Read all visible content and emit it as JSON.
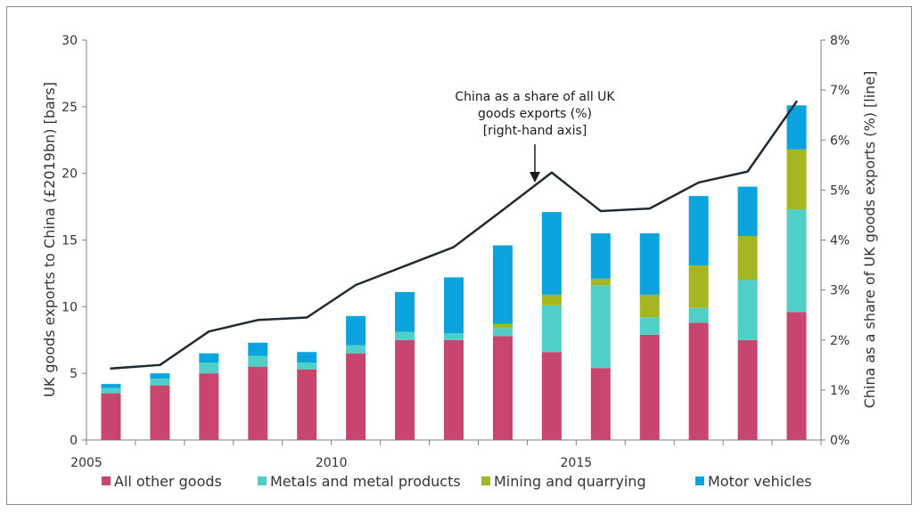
{
  "chart_data": {
    "type": "bar",
    "stacked": true,
    "title": "",
    "ylabel": "UK goods exports to China (£2019bn) [bars]",
    "y2label": "China as a share of UK goods exports (%) [line]",
    "ylim": [
      0,
      30
    ],
    "y2lim": [
      0,
      8
    ],
    "yticks": [
      "0",
      "5",
      "10",
      "15",
      "20",
      "25",
      "30"
    ],
    "y2ticks": [
      "0%",
      "1%",
      "2%",
      "3%",
      "4%",
      "5%",
      "6%",
      "7%",
      "8%"
    ],
    "xtick_labels": [
      "2005",
      "2010",
      "2015"
    ],
    "categories": [
      "2005",
      "2006",
      "2007",
      "2008",
      "2009",
      "2010",
      "2011",
      "2012",
      "2013",
      "2014",
      "2015",
      "2016",
      "2017",
      "2018",
      "2019"
    ],
    "series": [
      {
        "name": "All other goods",
        "color": "#c8456d",
        "values": [
          3.5,
          4.1,
          5.0,
          5.5,
          5.3,
          6.5,
          7.5,
          7.5,
          7.8,
          6.6,
          5.4,
          7.9,
          8.8,
          7.5,
          9.6
        ]
      },
      {
        "name": "Metals and metal products",
        "color": "#4fcfc7",
        "values": [
          0.4,
          0.5,
          0.8,
          0.8,
          0.5,
          0.6,
          0.6,
          0.5,
          0.6,
          3.5,
          6.2,
          1.3,
          1.1,
          4.5,
          7.7
        ]
      },
      {
        "name": "Mining and quarrying",
        "color": "#a6b522",
        "values": [
          0.0,
          0.0,
          0.0,
          0.0,
          0.0,
          0.0,
          0.0,
          0.0,
          0.3,
          0.8,
          0.5,
          1.7,
          3.2,
          3.3,
          4.5
        ]
      },
      {
        "name": "Motor vehicles",
        "color": "#0aa3de",
        "values": [
          0.3,
          0.4,
          0.7,
          1.0,
          0.8,
          2.2,
          3.0,
          4.2,
          5.9,
          6.2,
          3.4,
          4.6,
          5.2,
          3.7,
          3.3
        ]
      }
    ],
    "line": {
      "name": "China as a share of all UK goods exports (%)",
      "color": "#1f2b35",
      "values": [
        1.43,
        1.5,
        2.17,
        2.4,
        2.45,
        3.1,
        3.48,
        3.86,
        4.6,
        5.35,
        4.58,
        4.63,
        5.15,
        5.37,
        6.77
      ]
    },
    "annotation": [
      "China as a share of all UK",
      "goods exports (%)",
      "[right-hand axis]"
    ],
    "legend": {
      "position": "bottom"
    },
    "grid": false
  }
}
